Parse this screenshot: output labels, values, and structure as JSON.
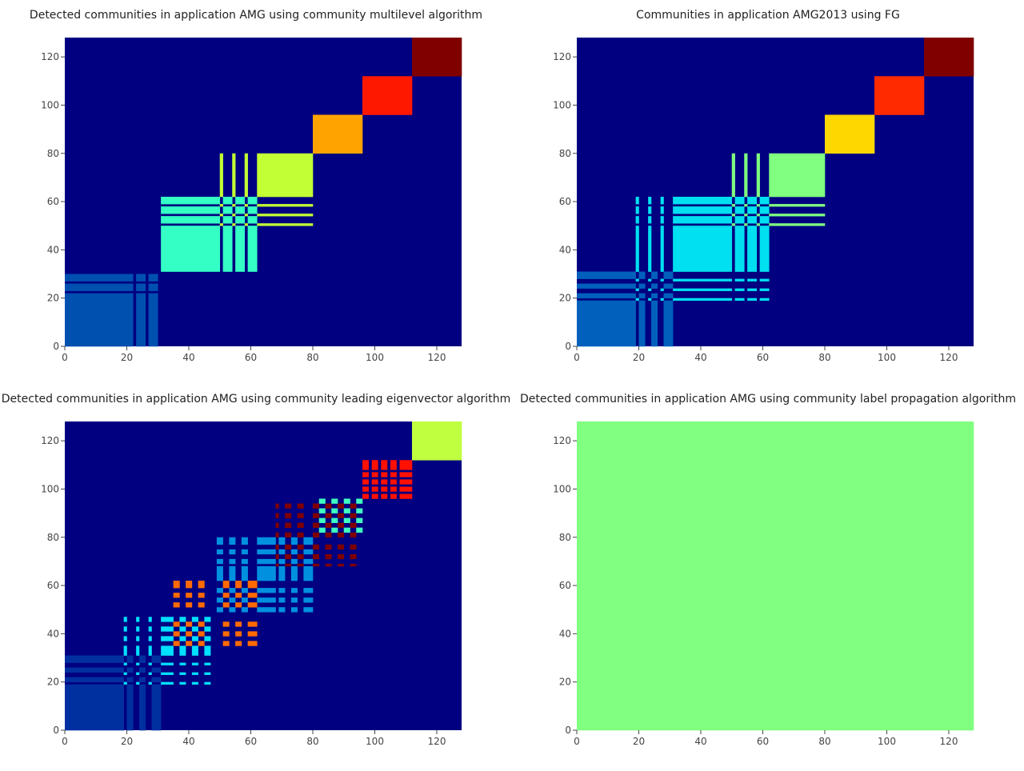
{
  "chart_data": [
    {
      "type": "heatmap",
      "title": "Detected communities in application AMG using community multilevel algorithm",
      "xlim": [
        0,
        127
      ],
      "ylim": [
        0,
        127
      ],
      "xticks": [
        0,
        20,
        40,
        60,
        80,
        100,
        120
      ],
      "yticks": [
        0,
        20,
        40,
        60,
        80,
        100,
        120
      ],
      "base_color": "#000080",
      "blocks": [
        {
          "community": 1,
          "color": "#0050b0",
          "ranges": [
            [
              0,
              18
            ],
            [
              19,
              21
            ],
            [
              23,
              25
            ],
            [
              27,
              29
            ]
          ]
        },
        {
          "community": 2,
          "color": "#34ffc4",
          "ranges": [
            [
              31,
              49
            ],
            [
              51,
              53
            ],
            [
              55,
              57
            ],
            [
              59,
              61
            ]
          ]
        },
        {
          "community": 3,
          "color": "#c2ff34",
          "ranges": [
            [
              50,
              50
            ],
            [
              54,
              54
            ],
            [
              58,
              58
            ],
            [
              62,
              79
            ]
          ]
        },
        {
          "community": 4,
          "color": "#ffa300",
          "ranges": [
            [
              80,
              95
            ]
          ]
        },
        {
          "community": 5,
          "color": "#ff1800",
          "ranges": [
            [
              96,
              111
            ]
          ]
        },
        {
          "community": 6,
          "color": "#800000",
          "ranges": [
            [
              112,
              127
            ]
          ]
        }
      ]
    },
    {
      "type": "heatmap",
      "title": "Communities in application AMG2013 using FG",
      "xlim": [
        0,
        127
      ],
      "ylim": [
        0,
        127
      ],
      "xticks": [
        0,
        20,
        40,
        60,
        80,
        100,
        120
      ],
      "yticks": [
        0,
        20,
        40,
        60,
        80,
        100,
        120
      ],
      "base_color": "#000080",
      "blocks": [
        {
          "community": 1,
          "color": "#0060bb",
          "ranges": [
            [
              0,
              18
            ],
            [
              20,
              21
            ],
            [
              24,
              25
            ],
            [
              28,
              30
            ]
          ]
        },
        {
          "community": 2,
          "color": "#00e0f0",
          "ranges": [
            [
              19,
              19
            ],
            [
              23,
              23
            ],
            [
              27,
              27
            ],
            [
              31,
              49
            ],
            [
              51,
              53
            ],
            [
              55,
              57
            ],
            [
              59,
              61
            ]
          ]
        },
        {
          "community": 3,
          "color": "#80ff80",
          "ranges": [
            [
              50,
              50
            ],
            [
              54,
              54
            ],
            [
              58,
              58
            ],
            [
              62,
              79
            ]
          ]
        },
        {
          "community": 4,
          "color": "#ffd700",
          "ranges": [
            [
              80,
              95
            ]
          ]
        },
        {
          "community": 5,
          "color": "#ff2a00",
          "ranges": [
            [
              96,
              111
            ]
          ]
        },
        {
          "community": 6,
          "color": "#800000",
          "ranges": [
            [
              112,
              127
            ]
          ]
        }
      ]
    },
    {
      "type": "heatmap",
      "title": "Detected communities in application AMG using community leading eigenvector algorithm",
      "xlim": [
        0,
        127
      ],
      "ylim": [
        0,
        127
      ],
      "xticks": [
        0,
        20,
        40,
        60,
        80,
        100,
        120
      ],
      "yticks": [
        0,
        20,
        40,
        60,
        80,
        100,
        120
      ],
      "base_color": "#000080",
      "blocks": [
        {
          "community": 1,
          "color": "#0030a0",
          "ranges": [
            [
              0,
              18
            ],
            [
              20,
              21
            ],
            [
              24,
              25
            ],
            [
              28,
              30
            ]
          ]
        },
        {
          "community": 2,
          "color": "#00e0ff",
          "ranges": [
            [
              19,
              19
            ],
            [
              23,
              23
            ],
            [
              27,
              27
            ],
            [
              31,
              34
            ],
            [
              37,
              38
            ],
            [
              41,
              42
            ],
            [
              45,
              46
            ]
          ]
        },
        {
          "community": 3,
          "color": "#ff6a00",
          "ranges": [
            [
              35,
              36
            ],
            [
              39,
              40
            ],
            [
              43,
              44
            ],
            [
              51,
              52
            ],
            [
              55,
              56
            ],
            [
              59,
              61
            ]
          ]
        },
        {
          "community": 4,
          "color": "#0090e0",
          "ranges": [
            [
              49,
              50
            ],
            [
              53,
              54
            ],
            [
              57,
              58
            ],
            [
              62,
              67
            ],
            [
              69,
              70
            ],
            [
              73,
              74
            ],
            [
              77,
              79
            ]
          ]
        },
        {
          "community": 5,
          "color": "#800000",
          "ranges": [
            [
              68,
              68
            ],
            [
              71,
              72
            ],
            [
              75,
              76
            ],
            [
              80,
              81
            ],
            [
              84,
              85
            ],
            [
              88,
              89
            ],
            [
              92,
              93
            ]
          ]
        },
        {
          "community": 6,
          "color": "#40ffc0",
          "ranges": [
            [
              82,
              83
            ],
            [
              86,
              87
            ],
            [
              90,
              91
            ],
            [
              94,
              95
            ]
          ]
        },
        {
          "community": 7,
          "color": "#ff1000",
          "ranges": [
            [
              96,
              97
            ],
            [
              99,
              100
            ],
            [
              102,
              103
            ],
            [
              105,
              106
            ],
            [
              108,
              111
            ]
          ]
        },
        {
          "community": 8,
          "color": "#c0ff40",
          "ranges": [
            [
              112,
              127
            ]
          ]
        }
      ]
    },
    {
      "type": "heatmap",
      "title": "Detected communities in application AMG using community label propagation algorithm",
      "xlim": [
        0,
        127
      ],
      "ylim": [
        0,
        127
      ],
      "xticks": [
        0,
        20,
        40,
        60,
        80,
        100,
        120
      ],
      "yticks": [
        0,
        20,
        40,
        60,
        80,
        100,
        120
      ],
      "base_color": "#80ff80",
      "blocks": [
        {
          "community": 1,
          "color": "#80ff80",
          "ranges": [
            [
              0,
              127
            ]
          ]
        }
      ]
    }
  ]
}
